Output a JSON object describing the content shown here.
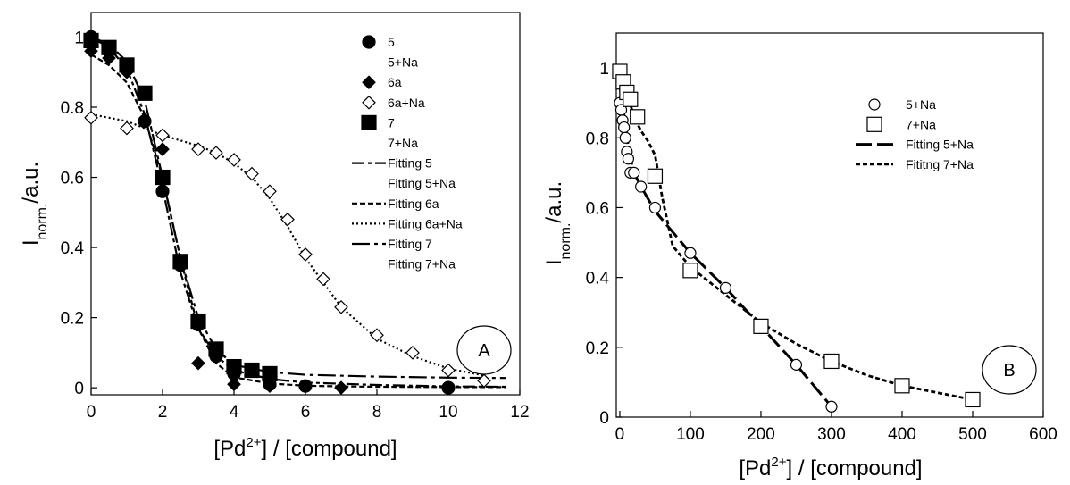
{
  "chart_data": [
    {
      "type": "scatter",
      "panel_label": "A",
      "xlabel": {
        "main": "[Pd",
        "sup": "2+",
        "rest": "] / [compound]"
      },
      "ylabel": {
        "main": "I",
        "sub": "norm.",
        "rest": "/a.u."
      },
      "xlim": [
        0,
        12
      ],
      "ylim": [
        -0.02,
        1.07
      ],
      "xticks": [
        0,
        2,
        4,
        6,
        8,
        10,
        12
      ],
      "yticks": [
        0,
        0.2,
        0.4,
        0.6,
        0.8,
        1
      ],
      "xtick_labels": [
        "0",
        "2",
        "4",
        "6",
        "8",
        "10",
        "12"
      ],
      "ytick_labels": [
        "0",
        "0.2",
        "0.4",
        "0.6",
        "0.8",
        "1"
      ],
      "grid": false,
      "legend_position": "top-right",
      "series": [
        {
          "name": "5",
          "marker": "circle",
          "filled": true,
          "x": [
            0,
            0.5,
            1,
            1.5,
            2,
            2.5,
            3,
            3.5,
            4,
            5,
            6,
            10
          ],
          "y": [
            1.0,
            0.96,
            0.92,
            0.76,
            0.56,
            0.35,
            0.18,
            0.09,
            0.04,
            0.01,
            0.005,
            0.0
          ]
        },
        {
          "name": "5+Na",
          "marker": "none",
          "filled": false,
          "x": [],
          "y": []
        },
        {
          "name": "6a",
          "marker": "diamond",
          "filled": true,
          "x": [
            0,
            0.5,
            1,
            2,
            3,
            4,
            5,
            7
          ],
          "y": [
            0.96,
            0.94,
            0.9,
            0.68,
            0.07,
            0.01,
            0.005,
            0.0
          ]
        },
        {
          "name": "6a+Na",
          "marker": "diamond",
          "filled": false,
          "x": [
            0,
            1,
            2,
            3,
            3.5,
            4,
            4.5,
            5,
            5.5,
            6,
            6.5,
            7,
            8,
            9,
            10,
            11
          ],
          "y": [
            0.77,
            0.74,
            0.72,
            0.68,
            0.67,
            0.65,
            0.61,
            0.56,
            0.48,
            0.38,
            0.31,
            0.23,
            0.15,
            0.1,
            0.05,
            0.02
          ]
        },
        {
          "name": "7",
          "marker": "square",
          "filled": true,
          "x": [
            0,
            0.5,
            1,
            1.5,
            2,
            2.5,
            3,
            3.5,
            4,
            4.5,
            5
          ],
          "y": [
            0.99,
            0.97,
            0.92,
            0.84,
            0.6,
            0.36,
            0.19,
            0.11,
            0.06,
            0.05,
            0.04
          ]
        },
        {
          "name": "7+Na",
          "marker": "none",
          "filled": false,
          "x": [],
          "y": []
        }
      ],
      "fits": [
        {
          "name": "Fitting 5",
          "dash": "14,4,4,4",
          "width": 2.2,
          "x": [
            0,
            0.5,
            1,
            1.5,
            2,
            2.5,
            3,
            3.5,
            4,
            5,
            6,
            8,
            10,
            11.6
          ],
          "y": [
            1.0,
            0.97,
            0.91,
            0.78,
            0.57,
            0.33,
            0.17,
            0.09,
            0.05,
            0.025,
            0.015,
            0.008,
            0.004,
            0.003
          ]
        },
        {
          "name": "Fitting 5+Na",
          "dash": "",
          "width": 0,
          "x": [],
          "y": []
        },
        {
          "name": "Fitting 6a",
          "dash": "6,3",
          "width": 2.2,
          "x": [
            0,
            0.5,
            1,
            1.5,
            2,
            2.5,
            3,
            3.5,
            4,
            5,
            6,
            7,
            8,
            10,
            11.6
          ],
          "y": [
            0.95,
            0.92,
            0.87,
            0.77,
            0.6,
            0.37,
            0.17,
            0.07,
            0.03,
            0.012,
            0.006,
            0.004,
            0.003,
            0.002,
            0.002
          ]
        },
        {
          "name": "Fitting 6a+Na",
          "dash": "2,3",
          "width": 2.2,
          "x": [
            0,
            1,
            2,
            3,
            3.5,
            4,
            4.5,
            5,
            5.5,
            6,
            6.5,
            7,
            8,
            9,
            10,
            11
          ],
          "y": [
            0.78,
            0.76,
            0.72,
            0.69,
            0.67,
            0.64,
            0.6,
            0.54,
            0.46,
            0.37,
            0.3,
            0.23,
            0.14,
            0.09,
            0.055,
            0.035
          ]
        },
        {
          "name": "Fitting 7",
          "dash": "20,5,4,5",
          "width": 2.2,
          "x": [
            0,
            0.5,
            1,
            1.5,
            2,
            2.5,
            3,
            3.5,
            4,
            5,
            6,
            8,
            10,
            11.6
          ],
          "y": [
            1.0,
            0.98,
            0.93,
            0.82,
            0.6,
            0.37,
            0.2,
            0.11,
            0.065,
            0.045,
            0.037,
            0.032,
            0.029,
            0.028
          ]
        },
        {
          "name": "Fitting 7+Na",
          "dash": "",
          "width": 0,
          "x": [],
          "y": []
        }
      ]
    },
    {
      "type": "scatter",
      "panel_label": "B",
      "xlabel": {
        "main": "[Pd",
        "sup": "2+",
        "rest": "] / [compound]"
      },
      "ylabel": {
        "main": "I",
        "sub": "norm.",
        "rest": "/a.u."
      },
      "xlim": [
        -5,
        600
      ],
      "ylim": [
        0,
        1.1
      ],
      "xticks": [
        0,
        100,
        200,
        300,
        400,
        500,
        600
      ],
      "yticks": [
        0,
        0.2,
        0.4,
        0.6,
        0.8,
        1
      ],
      "xtick_labels": [
        "0",
        "100",
        "200",
        "300",
        "400",
        "500",
        "600"
      ],
      "ytick_labels": [
        "0",
        "0.2",
        "0.4",
        "0.6",
        "0.8",
        "1"
      ],
      "grid": false,
      "legend_position": "top-right",
      "series": [
        {
          "name": "5+Na",
          "marker": "circle",
          "filled": false,
          "x": [
            0,
            2,
            4,
            6,
            8,
            10,
            12,
            15,
            20,
            30,
            50,
            100,
            150,
            200,
            250,
            300
          ],
          "y": [
            0.9,
            0.88,
            0.85,
            0.83,
            0.8,
            0.76,
            0.74,
            0.7,
            0.7,
            0.66,
            0.6,
            0.47,
            0.37,
            0.26,
            0.15,
            0.03
          ]
        },
        {
          "name": "7+Na",
          "marker": "square",
          "filled": false,
          "x": [
            0,
            5,
            10,
            15,
            25,
            50,
            100,
            200,
            300,
            400,
            500
          ],
          "y": [
            0.99,
            0.96,
            0.93,
            0.91,
            0.86,
            0.69,
            0.42,
            0.26,
            0.16,
            0.09,
            0.05
          ]
        }
      ],
      "fits": [
        {
          "name": "Fitting 5+Na",
          "dash": "18,6",
          "width": 3,
          "x": [
            0,
            5,
            10,
            15,
            20,
            30,
            50,
            75,
            100,
            150,
            200,
            250,
            300
          ],
          "y": [
            0.95,
            0.88,
            0.8,
            0.74,
            0.7,
            0.66,
            0.59,
            0.53,
            0.47,
            0.37,
            0.26,
            0.15,
            0.03
          ]
        },
        {
          "name": "Fititng 7+Na",
          "dash": "5,3",
          "width": 2.8,
          "x": [
            0,
            10,
            20,
            30,
            40,
            50,
            60,
            75,
            100,
            150,
            200,
            250,
            300,
            350,
            400,
            450,
            500
          ],
          "y": [
            0.99,
            0.93,
            0.86,
            0.82,
            0.79,
            0.75,
            0.63,
            0.49,
            0.43,
            0.35,
            0.27,
            0.21,
            0.16,
            0.12,
            0.09,
            0.07,
            0.05
          ]
        }
      ]
    }
  ]
}
